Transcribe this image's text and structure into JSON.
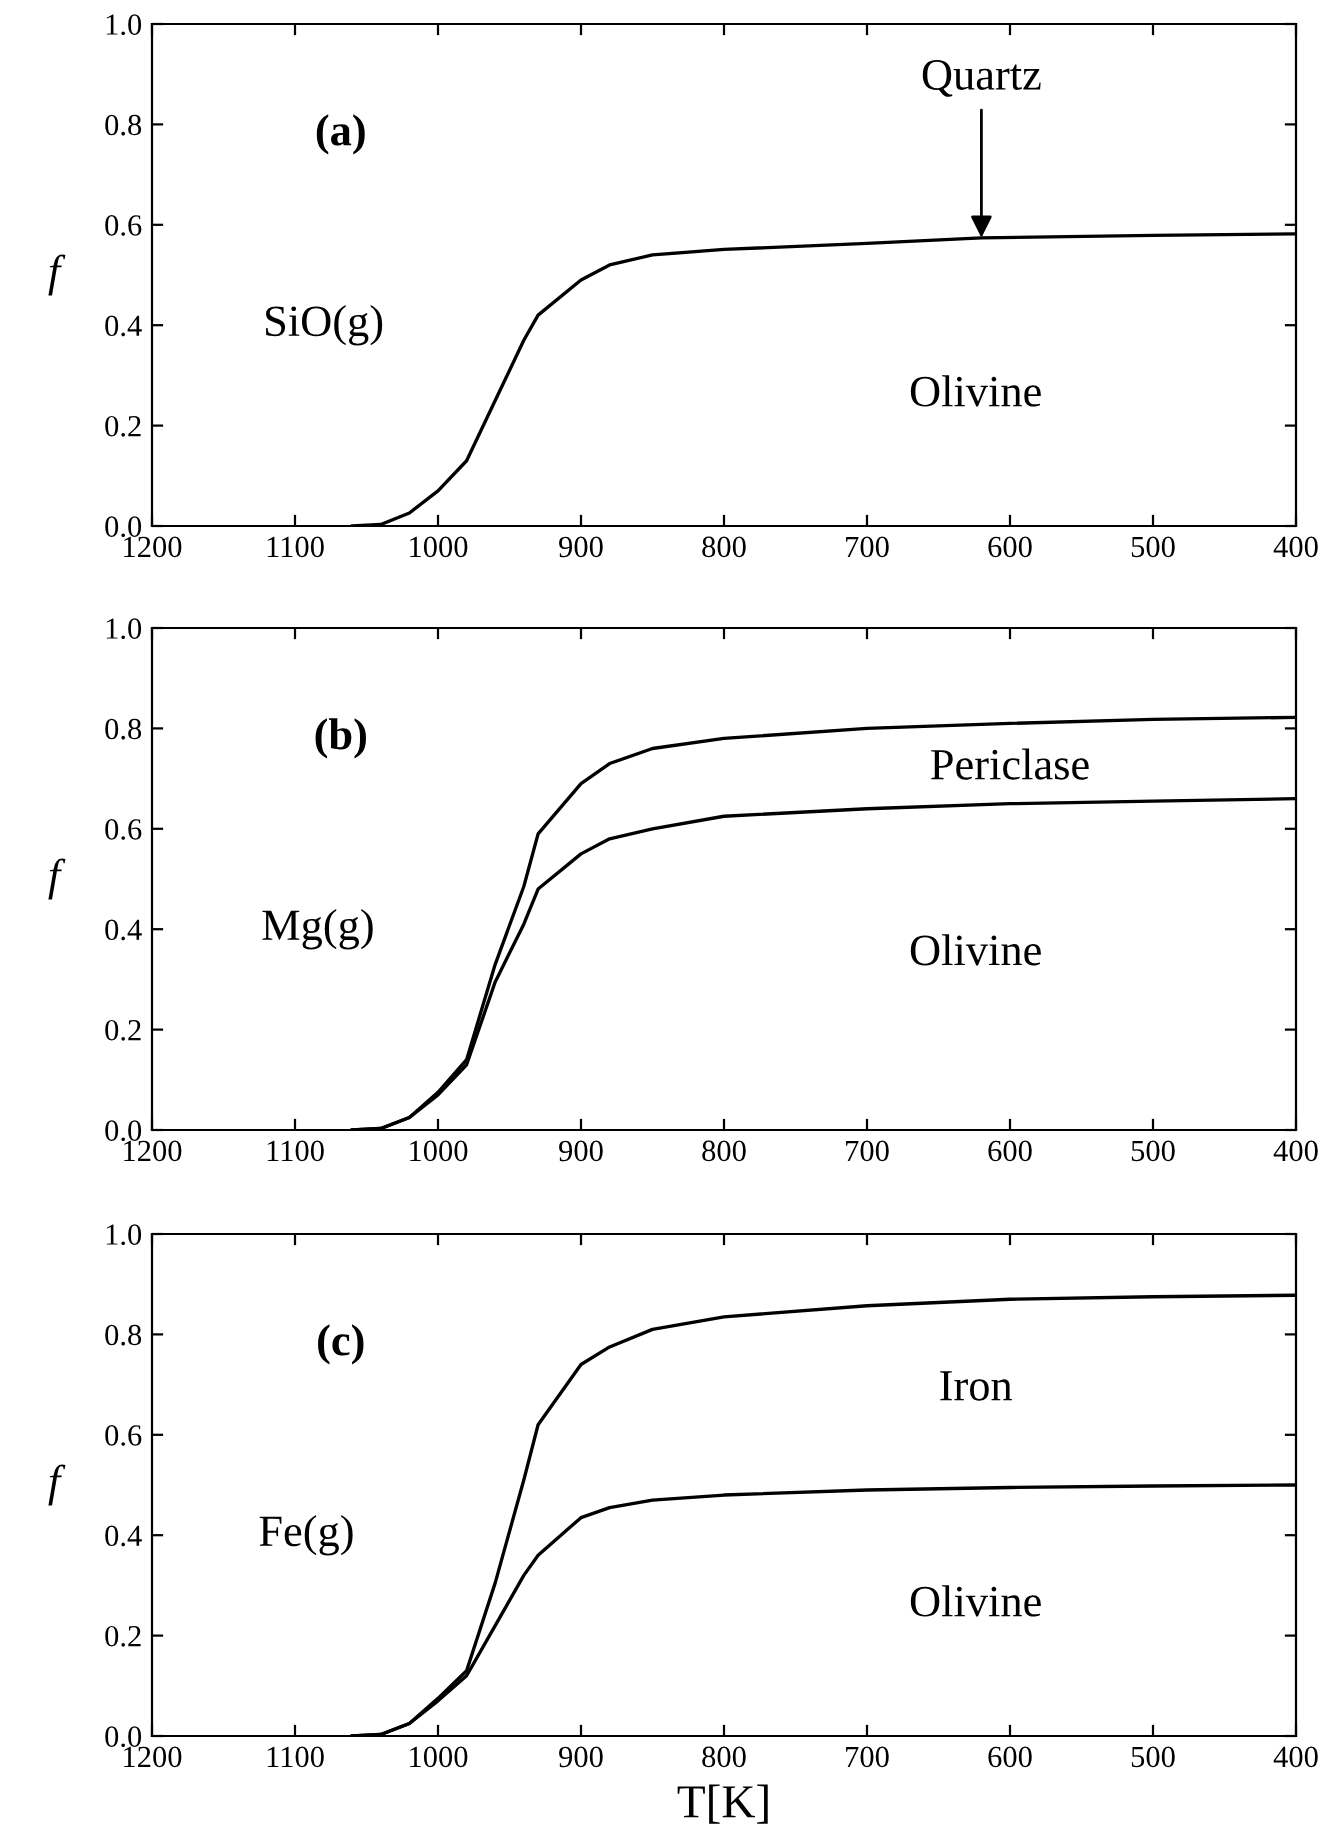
{
  "chart_data": [
    {
      "type": "line",
      "ylabel": "f",
      "xlim": [
        1200,
        400
      ],
      "ylim": [
        0,
        1.0
      ],
      "xticks": [
        1200,
        1100,
        1000,
        900,
        800,
        700,
        600,
        500,
        400
      ],
      "yticks": [
        {
          "value": 0,
          "label": "0.0"
        },
        {
          "value": 0.2,
          "label": "0.2"
        },
        {
          "value": 0.4,
          "label": "0.4"
        },
        {
          "value": 0.6,
          "label": "0.6"
        },
        {
          "value": 0.8,
          "label": "0.8"
        },
        {
          "value": 1.0,
          "label": "1.0"
        }
      ],
      "grid": false,
      "legend": false,
      "series": [
        {
          "color": "#000000",
          "x": [
            1060,
            1040,
            1020,
            1000,
            980,
            960,
            940,
            930,
            900,
            880,
            850,
            800,
            700,
            620,
            500,
            400
          ],
          "values": [
            0,
            0.003,
            0.026,
            0.07,
            0.13,
            0.25,
            0.37,
            0.42,
            0.49,
            0.52,
            0.54,
            0.551,
            0.563,
            0.574,
            0.579,
            0.582
          ]
        }
      ],
      "annotations": [
        "(a)",
        "SiO(g)",
        "Olivine",
        {
          "text": "Quartz",
          "x": 620,
          "y": 0.574
        }
      ]
    },
    {
      "type": "line",
      "ylabel": "f",
      "xlim": [
        1200,
        400
      ],
      "ylim": [
        0,
        1.0
      ],
      "xticks": [
        1200,
        1100,
        1000,
        900,
        800,
        700,
        600,
        500,
        400
      ],
      "yticks": [
        {
          "value": 0,
          "label": "0.0"
        },
        {
          "value": 0.2,
          "label": "0.2"
        },
        {
          "value": 0.4,
          "label": "0.4"
        },
        {
          "value": 0.6,
          "label": "0.6"
        },
        {
          "value": 0.8,
          "label": "0.8"
        },
        {
          "value": 1.0,
          "label": "1.0"
        }
      ],
      "grid": false,
      "legend": false,
      "series": [
        {
          "color": "#000000",
          "x": [
            1060,
            1040,
            1020,
            1000,
            980,
            960,
            940,
            930,
            900,
            880,
            850,
            800,
            700,
            600,
            500,
            400
          ],
          "values": [
            0,
            0.003,
            0.025,
            0.075,
            0.14,
            0.33,
            0.485,
            0.59,
            0.69,
            0.73,
            0.76,
            0.78,
            0.8,
            0.81,
            0.818,
            0.822
          ]
        },
        {
          "color": "#000000",
          "x": [
            1060,
            1040,
            1020,
            1000,
            980,
            960,
            940,
            930,
            900,
            880,
            850,
            800,
            700,
            600,
            500,
            400
          ],
          "values": [
            0,
            0.003,
            0.025,
            0.07,
            0.13,
            0.295,
            0.41,
            0.48,
            0.55,
            0.58,
            0.6,
            0.625,
            0.64,
            0.65,
            0.655,
            0.66
          ]
        }
      ],
      "annotations": [
        "(b)",
        "Mg(g)",
        "Periclase",
        "Olivine"
      ]
    },
    {
      "type": "line",
      "xlabel": "T[K]",
      "ylabel": "f",
      "xlim": [
        1200,
        400
      ],
      "ylim": [
        0,
        1.0
      ],
      "xticks": [
        1200,
        1100,
        1000,
        900,
        800,
        700,
        600,
        500,
        400
      ],
      "yticks": [
        {
          "value": 0,
          "label": "0.0"
        },
        {
          "value": 0.2,
          "label": "0.2"
        },
        {
          "value": 0.4,
          "label": "0.4"
        },
        {
          "value": 0.6,
          "label": "0.6"
        },
        {
          "value": 0.8,
          "label": "0.8"
        },
        {
          "value": 1.0,
          "label": "1.0"
        }
      ],
      "grid": false,
      "legend": false,
      "series": [
        {
          "color": "#000000",
          "x": [
            1060,
            1040,
            1020,
            1000,
            980,
            960,
            940,
            930,
            900,
            880,
            850,
            800,
            700,
            600,
            500,
            400
          ],
          "values": [
            0,
            0.003,
            0.025,
            0.075,
            0.13,
            0.305,
            0.51,
            0.62,
            0.74,
            0.775,
            0.81,
            0.835,
            0.857,
            0.87,
            0.875,
            0.878
          ]
        },
        {
          "color": "#000000",
          "x": [
            1060,
            1040,
            1020,
            1000,
            980,
            960,
            940,
            930,
            900,
            880,
            850,
            800,
            700,
            600,
            500,
            400
          ],
          "values": [
            0,
            0.003,
            0.025,
            0.07,
            0.12,
            0.22,
            0.32,
            0.36,
            0.435,
            0.455,
            0.47,
            0.48,
            0.49,
            0.495,
            0.498,
            0.5
          ]
        }
      ],
      "annotations": [
        "(c)",
        "Fe(g)",
        "Iron",
        "Olivine"
      ]
    }
  ]
}
